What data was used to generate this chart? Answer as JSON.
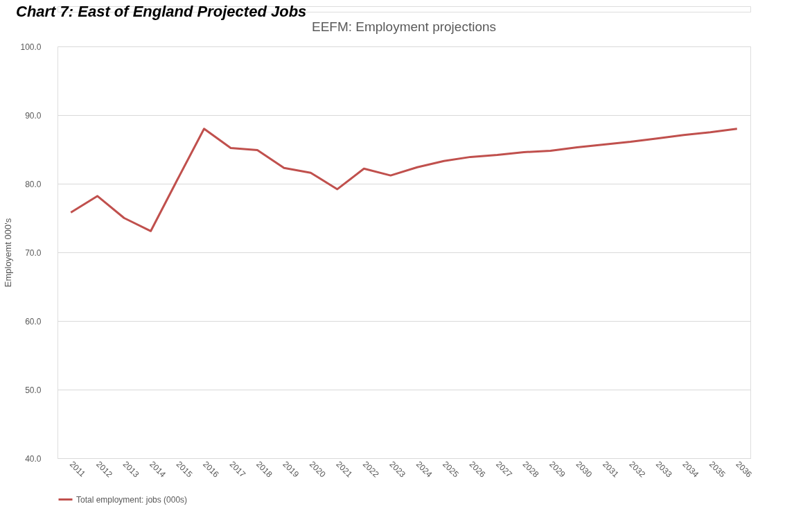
{
  "chart_data": {
    "type": "line",
    "title": "EEFM: Employment projections",
    "ylabel": "Employemt 000's",
    "annotations": [
      "Chart 7:        East of England Projected Jobs"
    ],
    "categories": [
      "2011",
      "2012",
      "2013",
      "2014",
      "2015",
      "2016",
      "2017",
      "2018",
      "2019",
      "2020",
      "2021",
      "2022",
      "2023",
      "2024",
      "2025",
      "2026",
      "2027",
      "2028",
      "2029",
      "2030",
      "2031",
      "2032",
      "2033",
      "2034",
      "2035",
      "2036"
    ],
    "series": [
      {
        "name": "Total employment: jobs (000s)",
        "color": "#c0504d",
        "values": [
          75.8,
          78.2,
          75.0,
          73.1,
          80.6,
          88.0,
          85.2,
          84.9,
          82.3,
          81.6,
          79.2,
          82.2,
          81.2,
          82.4,
          83.3,
          83.9,
          84.2,
          84.6,
          84.8,
          85.3,
          85.7,
          86.1,
          86.6,
          87.1,
          87.5,
          88.0
        ]
      }
    ],
    "ylim": [
      40,
      100
    ],
    "yticks": [
      {
        "value": 40,
        "label": "40.0"
      },
      {
        "value": 50,
        "label": "50.0"
      },
      {
        "value": 60,
        "label": "60.0"
      },
      {
        "value": 70,
        "label": "70.0"
      },
      {
        "value": 80,
        "label": "80.0"
      },
      {
        "value": 90,
        "label": "90.0"
      },
      {
        "value": 100,
        "label": "100.0"
      }
    ],
    "grid": "y",
    "legend": "bottom",
    "marker": "none",
    "line_style": "solid"
  }
}
